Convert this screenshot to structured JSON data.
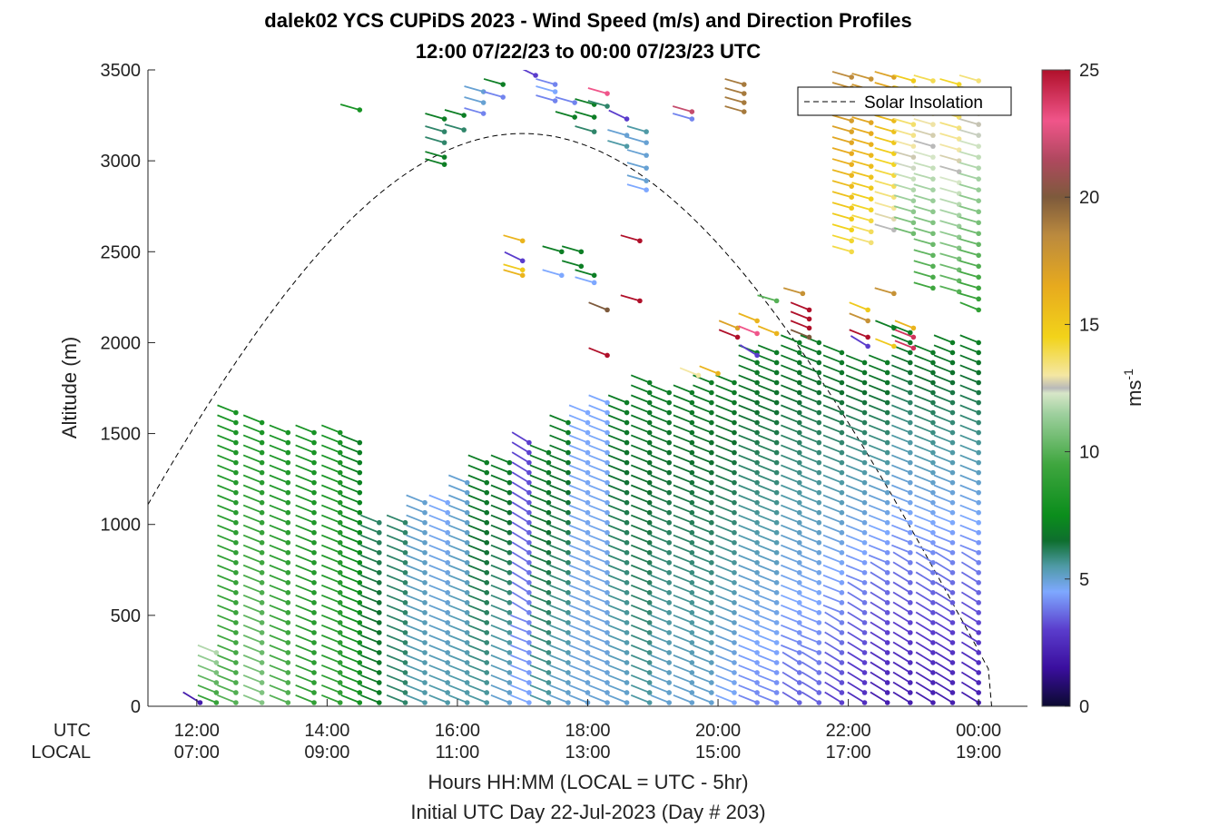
{
  "chart_data": {
    "type": "wind-barb-profile",
    "title_line1": "dalek02 YCS CUPiDS 2023 - Wind Speed (m/s) and Direction Profiles",
    "title_line2": "12:00 07/22/23 to 00:00 07/23/23  UTC",
    "ylabel": "Altitude (m)",
    "xlabel_line1": "Hours HH:MM  (LOCAL = UTC - 5hr)",
    "xlabel_line2": "Initial UTC Day 22-Jul-2023 (Day # 203)",
    "row_label_utc": "UTC",
    "row_label_local": "LOCAL",
    "ylim": [
      0,
      3500
    ],
    "xlim_hours_utc": [
      11.25,
      24.75
    ],
    "yticks": [
      "0",
      "500",
      "1000",
      "1500",
      "2000",
      "2500",
      "3000",
      "3500"
    ],
    "xticks_utc": [
      "12:00",
      "14:00",
      "16:00",
      "18:00",
      "20:00",
      "22:00",
      "00:00"
    ],
    "xticks_local": [
      "07:00",
      "09:00",
      "11:00",
      "13:00",
      "15:00",
      "17:00",
      "19:00"
    ],
    "legend_label": "Solar Insolation",
    "colorbar_label": "ms",
    "colorbar_exponent": "-1",
    "colorbar_range": [
      0,
      25
    ],
    "colorbar_ticks": [
      "0",
      "5",
      "10",
      "15",
      "20",
      "25"
    ],
    "colorbar_stops": [
      {
        "v": 0,
        "c": "#0b0a30"
      },
      {
        "v": 1.5,
        "c": "#3a0e9e"
      },
      {
        "v": 3,
        "c": "#5a3ccc"
      },
      {
        "v": 4.5,
        "c": "#7ea8ff"
      },
      {
        "v": 5.5,
        "c": "#4f9aa6"
      },
      {
        "v": 6.5,
        "c": "#0e6f2e"
      },
      {
        "v": 7.5,
        "c": "#0b8d1c"
      },
      {
        "v": 9.5,
        "c": "#3fa63f"
      },
      {
        "v": 11.5,
        "c": "#9fd09f"
      },
      {
        "v": 12.3,
        "c": "#d7e6c8"
      },
      {
        "v": 12.5,
        "c": "#b9b9b9"
      },
      {
        "v": 13,
        "c": "#f4e7a3"
      },
      {
        "v": 14.5,
        "c": "#f2d31a"
      },
      {
        "v": 16.5,
        "c": "#e7aa1e"
      },
      {
        "v": 18.5,
        "c": "#bb8a3e"
      },
      {
        "v": 20,
        "c": "#7d5a3c"
      },
      {
        "v": 21.5,
        "c": "#b0485f"
      },
      {
        "v": 23,
        "c": "#f0558a"
      },
      {
        "v": 25,
        "c": "#b0102a"
      }
    ],
    "insolation_curve": {
      "peak_hour_utc": 17.0,
      "peak_altitude": 3150,
      "start_hour_utc": 11.25,
      "start_altitude": 1110,
      "end_hour_utc": 24.6
    },
    "profiles": [
      {
        "hour": 12.05,
        "top": 30,
        "base_speed": 2,
        "top_speed": 2
      },
      {
        "hour": 12.3,
        "top": 320,
        "base_speed": 9,
        "top_speed": 12
      },
      {
        "hour": 12.6,
        "top": 1650,
        "base_speed": 10,
        "top_speed": 8
      },
      {
        "hour": 13.0,
        "top": 1580,
        "base_speed": 11,
        "top_speed": 8
      },
      {
        "hour": 13.4,
        "top": 1550,
        "base_speed": 10,
        "top_speed": 8
      },
      {
        "hour": 13.8,
        "top": 1530,
        "base_speed": 9,
        "top_speed": 8
      },
      {
        "hour": 14.2,
        "top": 1530,
        "base_speed": 9,
        "top_speed": 8
      },
      {
        "hour": 14.5,
        "top": 1450,
        "base_speed": 8,
        "top_speed": 7
      },
      {
        "hour": 14.8,
        "top": 1050,
        "base_speed": 7,
        "top_speed": 6
      },
      {
        "hour": 15.2,
        "top": 1060,
        "base_speed": 6,
        "top_speed": 6
      },
      {
        "hour": 15.5,
        "top": 1150,
        "base_speed": 5.5,
        "top_speed": 5
      },
      {
        "hour": 15.85,
        "top": 1160,
        "base_speed": 5.5,
        "top_speed": 4.5
      },
      {
        "hour": 16.15,
        "top": 1240,
        "base_speed": 5.5,
        "top_speed": 5
      },
      {
        "hour": 16.45,
        "top": 1340,
        "base_speed": 5.5,
        "top_speed": 7
      },
      {
        "hour": 16.8,
        "top": 1360,
        "base_speed": 5,
        "top_speed": 7
      },
      {
        "hour": 17.1,
        "top": 1480,
        "base_speed": 4.5,
        "top_speed": 3
      },
      {
        "hour": 17.4,
        "top": 1440,
        "base_speed": 5.5,
        "top_speed": 7
      },
      {
        "hour": 17.7,
        "top": 1560,
        "base_speed": 5,
        "top_speed": 7
      },
      {
        "hour": 18.0,
        "top": 1620,
        "base_speed": 5,
        "top_speed": 4.5
      },
      {
        "hour": 18.3,
        "top": 1710,
        "base_speed": 5,
        "top_speed": 4.5
      },
      {
        "hour": 18.6,
        "top": 1700,
        "base_speed": 5,
        "top_speed": 7
      },
      {
        "hour": 18.95,
        "top": 1780,
        "base_speed": 5.5,
        "top_speed": 7
      },
      {
        "hour": 19.25,
        "top": 1760,
        "base_speed": 5,
        "top_speed": 7
      },
      {
        "hour": 19.6,
        "top": 1760,
        "base_speed": 5,
        "top_speed": 7
      },
      {
        "hour": 19.9,
        "top": 1800,
        "base_speed": 5,
        "top_speed": 7
      },
      {
        "hour": 20.25,
        "top": 1800,
        "base_speed": 4.5,
        "top_speed": 7
      },
      {
        "hour": 20.6,
        "top": 1950,
        "base_speed": 4,
        "top_speed": 7
      },
      {
        "hour": 20.9,
        "top": 1980,
        "base_speed": 4,
        "top_speed": 7
      },
      {
        "hour": 21.25,
        "top": 2000,
        "base_speed": 3.5,
        "top_speed": 7
      },
      {
        "hour": 21.55,
        "top": 2040,
        "base_speed": 3.5,
        "top_speed": 7
      },
      {
        "hour": 21.9,
        "top": 1960,
        "base_speed": 3,
        "top_speed": 7
      },
      {
        "hour": 22.25,
        "top": 1940,
        "base_speed": 2.5,
        "top_speed": 7
      },
      {
        "hour": 22.6,
        "top": 1900,
        "base_speed": 2,
        "top_speed": 7
      },
      {
        "hour": 22.95,
        "top": 2060,
        "base_speed": 2,
        "top_speed": 7
      },
      {
        "hour": 23.3,
        "top": 1980,
        "base_speed": 2,
        "top_speed": 7
      },
      {
        "hour": 23.6,
        "top": 2000,
        "base_speed": 2,
        "top_speed": 7
      },
      {
        "hour": 24.0,
        "top": 2000,
        "base_speed": 2,
        "top_speed": 7
      }
    ],
    "upper_profiles": [
      {
        "hour": 22.05,
        "bottom": 2500,
        "top": 3480,
        "speed": 15.5
      },
      {
        "hour": 22.35,
        "bottom": 2550,
        "top": 3470,
        "speed": 15
      },
      {
        "hour": 22.7,
        "bottom": 2620,
        "top": 3460,
        "speed": 14
      },
      {
        "hour": 23.0,
        "bottom": 2600,
        "top": 3470,
        "speed": 12
      },
      {
        "hour": 23.3,
        "bottom": 2300,
        "top": 3470,
        "speed": 11
      },
      {
        "hour": 23.7,
        "bottom": 2280,
        "top": 3460,
        "speed": 11.5
      },
      {
        "hour": 24.0,
        "bottom": 2180,
        "top": 3450,
        "speed": 10.5
      }
    ],
    "scatter_barbs": [
      {
        "hour": 14.5,
        "alt": 3280,
        "speed": 8
      },
      {
        "hour": 15.8,
        "alt": 3230,
        "speed": 7
      },
      {
        "hour": 15.8,
        "alt": 3160,
        "speed": 6
      },
      {
        "hour": 15.8,
        "alt": 3100,
        "speed": 6
      },
      {
        "hour": 15.8,
        "alt": 3020,
        "speed": 7
      },
      {
        "hour": 15.8,
        "alt": 2980,
        "speed": 7
      },
      {
        "hour": 16.1,
        "alt": 3250,
        "speed": 7
      },
      {
        "hour": 16.1,
        "alt": 3170,
        "speed": 6
      },
      {
        "hour": 16.4,
        "alt": 3380,
        "speed": 5
      },
      {
        "hour": 16.4,
        "alt": 3320,
        "speed": 5
      },
      {
        "hour": 16.4,
        "alt": 3260,
        "speed": 4
      },
      {
        "hour": 16.7,
        "alt": 3420,
        "speed": 7
      },
      {
        "hour": 16.7,
        "alt": 3350,
        "speed": 4
      },
      {
        "hour": 17.2,
        "alt": 3470,
        "speed": 3
      },
      {
        "hour": 17.5,
        "alt": 3420,
        "speed": 4
      },
      {
        "hour": 17.5,
        "alt": 3380,
        "speed": 4.5
      },
      {
        "hour": 17.5,
        "alt": 3330,
        "speed": 4
      },
      {
        "hour": 17.8,
        "alt": 3320,
        "speed": 4
      },
      {
        "hour": 17.8,
        "alt": 3240,
        "speed": 7
      },
      {
        "hour": 18.1,
        "alt": 3310,
        "speed": 7
      },
      {
        "hour": 18.1,
        "alt": 3240,
        "speed": 7
      },
      {
        "hour": 18.1,
        "alt": 3160,
        "speed": 6
      },
      {
        "hour": 18.3,
        "alt": 3370,
        "speed": 23
      },
      {
        "hour": 18.3,
        "alt": 3300,
        "speed": 6
      },
      {
        "hour": 18.6,
        "alt": 3230,
        "speed": 3
      },
      {
        "hour": 18.6,
        "alt": 3140,
        "speed": 5
      },
      {
        "hour": 18.6,
        "alt": 3080,
        "speed": 5.5
      },
      {
        "hour": 18.9,
        "alt": 3160,
        "speed": 5.5
      },
      {
        "hour": 18.9,
        "alt": 3100,
        "speed": 5
      },
      {
        "hour": 18.9,
        "alt": 3030,
        "speed": 5
      },
      {
        "hour": 18.9,
        "alt": 2960,
        "speed": 5
      },
      {
        "hour": 18.9,
        "alt": 2890,
        "speed": 5
      },
      {
        "hour": 18.9,
        "alt": 2840,
        "speed": 4.5
      },
      {
        "hour": 19.6,
        "alt": 3270,
        "speed": 22
      },
      {
        "hour": 19.6,
        "alt": 3230,
        "speed": 4
      },
      {
        "hour": 17.0,
        "alt": 2560,
        "speed": 16
      },
      {
        "hour": 17.0,
        "alt": 2450,
        "speed": 3
      },
      {
        "hour": 17.0,
        "alt": 2400,
        "speed": 15
      },
      {
        "hour": 17.0,
        "alt": 2370,
        "speed": 16
      },
      {
        "hour": 17.6,
        "alt": 2500,
        "speed": 7
      },
      {
        "hour": 17.6,
        "alt": 2370,
        "speed": 4.5
      },
      {
        "hour": 17.9,
        "alt": 2500,
        "speed": 7
      },
      {
        "hour": 17.9,
        "alt": 2420,
        "speed": 7
      },
      {
        "hour": 18.1,
        "alt": 2370,
        "speed": 7
      },
      {
        "hour": 18.1,
        "alt": 2330,
        "speed": 4.5
      },
      {
        "hour": 18.8,
        "alt": 2560,
        "speed": 25
      },
      {
        "hour": 18.8,
        "alt": 2230,
        "speed": 25
      },
      {
        "hour": 18.3,
        "alt": 2180,
        "speed": 20
      },
      {
        "hour": 18.3,
        "alt": 1930,
        "speed": 25
      },
      {
        "hour": 20.3,
        "alt": 2080,
        "speed": 17
      },
      {
        "hour": 20.3,
        "alt": 2030,
        "speed": 25
      },
      {
        "hour": 20.6,
        "alt": 2120,
        "speed": 16
      },
      {
        "hour": 20.6,
        "alt": 2050,
        "speed": 23
      },
      {
        "hour": 20.6,
        "alt": 1930,
        "speed": 3
      },
      {
        "hour": 20.9,
        "alt": 2230,
        "speed": 10
      },
      {
        "hour": 20.9,
        "alt": 2050,
        "speed": 16
      },
      {
        "hour": 21.3,
        "alt": 2270,
        "speed": 18
      },
      {
        "hour": 21.4,
        "alt": 2180,
        "speed": 25
      },
      {
        "hour": 21.4,
        "alt": 2130,
        "speed": 25
      },
      {
        "hour": 21.4,
        "alt": 2080,
        "speed": 25
      },
      {
        "hour": 21.4,
        "alt": 2030,
        "speed": 20
      },
      {
        "hour": 20.4,
        "alt": 3420,
        "speed": 19
      },
      {
        "hour": 20.4,
        "alt": 3370,
        "speed": 19
      },
      {
        "hour": 20.4,
        "alt": 3320,
        "speed": 19
      },
      {
        "hour": 20.4,
        "alt": 3270,
        "speed": 19
      },
      {
        "hour": 20.0,
        "alt": 1830,
        "speed": 16
      },
      {
        "hour": 19.7,
        "alt": 1820,
        "speed": 13
      },
      {
        "hour": 22.3,
        "alt": 2180,
        "speed": 15
      },
      {
        "hour": 22.3,
        "alt": 2120,
        "speed": 18
      },
      {
        "hour": 22.3,
        "alt": 2030,
        "speed": 25
      },
      {
        "hour": 22.3,
        "alt": 1980,
        "speed": 3
      },
      {
        "hour": 22.7,
        "alt": 2080,
        "speed": 7
      },
      {
        "hour": 22.7,
        "alt": 1980,
        "speed": 15
      },
      {
        "hour": 23.0,
        "alt": 2080,
        "speed": 16
      },
      {
        "hour": 23.0,
        "alt": 2030,
        "speed": 24
      },
      {
        "hour": 23.0,
        "alt": 1970,
        "speed": 24
      },
      {
        "hour": 22.7,
        "alt": 2270,
        "speed": 18
      }
    ]
  }
}
